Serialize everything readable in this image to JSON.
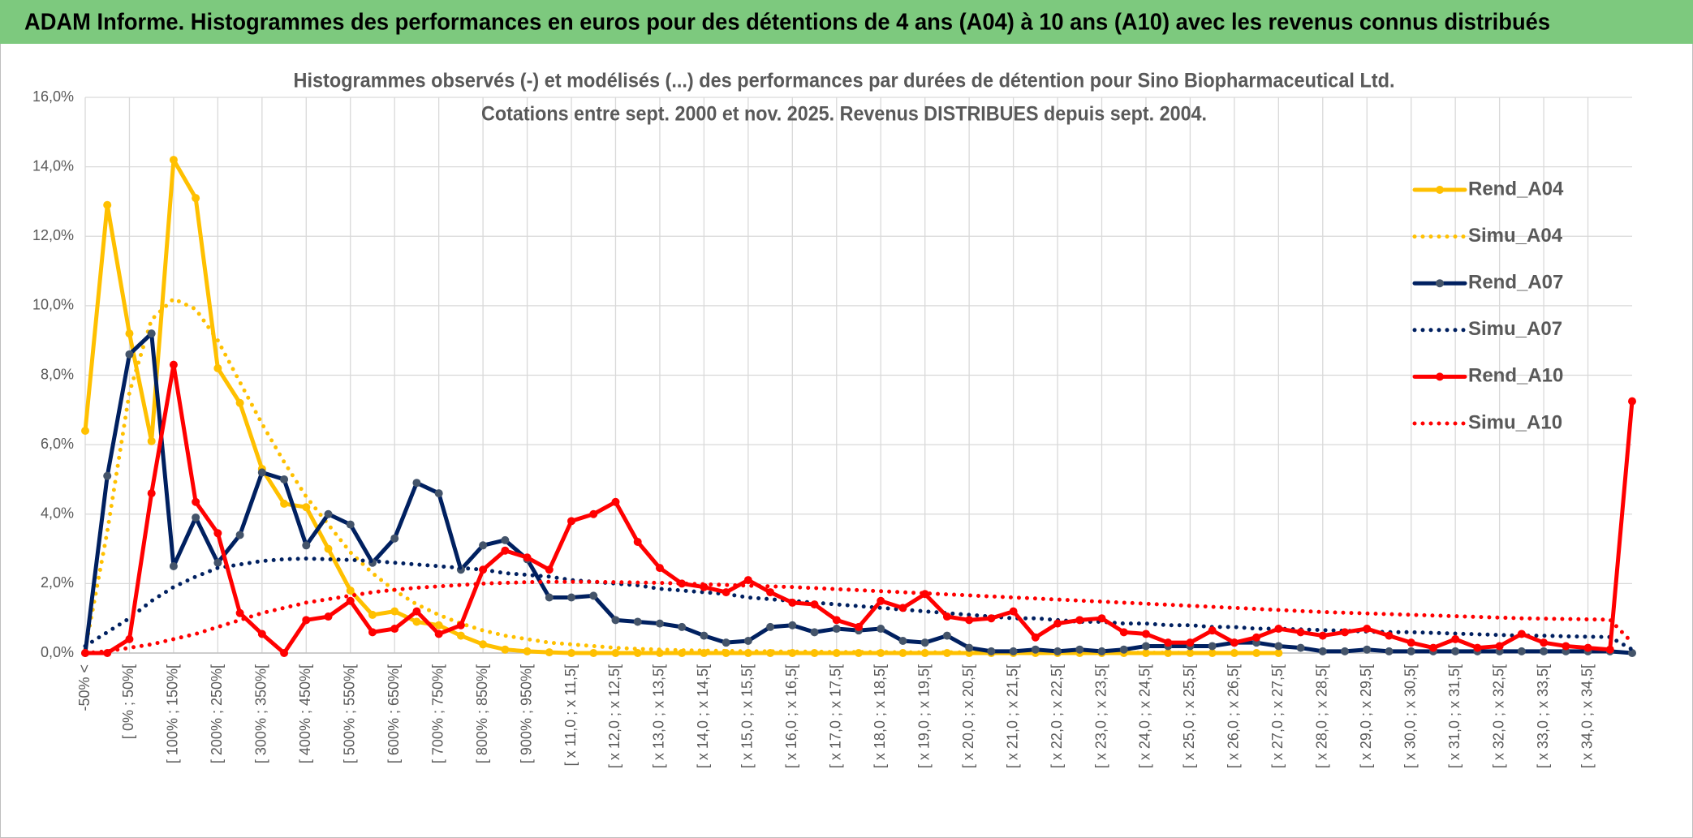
{
  "header": {
    "title": "ADAM Informe. Histogrammes des performances en euros pour des détentions de 4 ans (A04) à 10 ans (A10) avec les revenus connus distribués"
  },
  "chart_data": {
    "type": "line",
    "title": "Histogrammes observés (-) et modélisés (...) des performances par durées de détention pour Sino Biopharmaceutical Ltd.",
    "subtitle": "Cotations entre sept. 2000 et nov. 2025. Revenus DISTRIBUES depuis sept. 2004.",
    "categories": [
      "-50% <",
      null,
      "[ 0% ; 50%[",
      null,
      "[ 100% ; 150%[",
      null,
      "[ 200% ; 250%[",
      null,
      "[ 300% ; 350%[",
      null,
      "[ 400% ; 450%[",
      null,
      "[ 500% ; 550%[",
      null,
      "[ 600% ; 650%[",
      null,
      "[ 700% ; 750%[",
      null,
      "[ 800% ; 850%[",
      null,
      "[ 900% ; 950%[",
      null,
      "[ x 11,0 ; x 11,5[",
      null,
      "[ x 12,0 ; x 12,5[",
      null,
      "[ x 13,0 ; x 13,5[",
      null,
      "[ x 14,0 ; x 14,5[",
      null,
      "[ x 15,0 ; x 15,5[",
      null,
      "[ x 16,0 ; x 16,5[",
      null,
      "[ x 17,0 ; x 17,5[",
      null,
      "[ x 18,0 ; x 18,5[",
      null,
      "[ x 19,0 ; x 19,5[",
      null,
      "[ x 20,0 ; x 20,5[",
      null,
      "[ x 21,0 ; x 21,5[",
      null,
      "[ x 22,0 ; x 22,5[",
      null,
      "[ x 23,0 ; x 23,5[",
      null,
      "[ x 24,0 ; x 24,5[",
      null,
      "[ x 25,0 ; x 25,5[",
      null,
      "[ x 26,0 ; x 26,5[",
      null,
      "[ x 27,0 ; x 27,5[",
      null,
      "[ x 28,0 ; x 28,5[",
      null,
      "[ x 29,0 ; x 29,5[",
      null,
      "[ x 30,0 ; x 30,5[",
      null,
      "[ x 31,0 ; x 31,5[",
      null,
      "[ x 32,0 ; x 32,5[",
      null,
      "[ x 33,0 ; x 33,5[",
      null,
      "[ x 34,0 ; x 34,5[",
      null,
      null
    ],
    "ylim": [
      0,
      16
    ],
    "yticks": [
      {
        "value": 0,
        "label": "0,0%"
      },
      {
        "value": 2,
        "label": "2,0%"
      },
      {
        "value": 4,
        "label": "4,0%"
      },
      {
        "value": 6,
        "label": "6,0%"
      },
      {
        "value": 8,
        "label": "8,0%"
      },
      {
        "value": 10,
        "label": "10,0%"
      },
      {
        "value": 12,
        "label": "12,0%"
      },
      {
        "value": 14,
        "label": "14,0%"
      },
      {
        "value": 16,
        "label": "16,0%"
      }
    ],
    "grid": true,
    "legend": "right",
    "series": [
      {
        "name": "Rend_A04",
        "color": "#FFC000",
        "marker_color": "#FFC000",
        "line_style": "solid",
        "markers": true,
        "values": [
          6.4,
          12.9,
          9.2,
          6.1,
          14.2,
          13.1,
          8.2,
          7.2,
          5.3,
          4.3,
          4.2,
          3.0,
          1.8,
          1.1,
          1.2,
          0.9,
          0.8,
          0.5,
          0.25,
          0.1,
          0.05,
          0.02,
          0,
          0,
          0,
          0,
          0,
          0,
          0,
          0,
          0,
          0,
          0,
          0,
          0,
          0,
          0,
          0,
          0,
          0,
          0,
          0,
          0,
          0,
          0,
          0,
          0,
          0,
          0,
          0,
          0,
          0,
          0,
          0,
          0,
          null,
          null,
          null,
          null,
          null,
          null,
          null,
          null,
          null,
          null,
          null,
          null,
          null,
          null,
          null,
          null
        ]
      },
      {
        "name": "Simu_A04",
        "color": "#FFC000",
        "line_style": "dotted",
        "markers": false,
        "values": [
          0.1,
          3.5,
          7.5,
          9.6,
          10.2,
          9.9,
          9.0,
          7.8,
          6.6,
          5.5,
          4.5,
          3.7,
          2.9,
          2.3,
          1.8,
          1.4,
          1.1,
          0.85,
          0.65,
          0.5,
          0.4,
          0.3,
          0.25,
          0.2,
          0.15,
          0.12,
          0.1,
          0.08,
          0.07,
          0.06,
          0.05,
          0.05,
          0.04,
          0.04,
          0.03,
          0.03,
          0.03,
          0.02,
          0.02,
          0.02,
          0.02,
          0.01,
          0.01,
          0.01,
          0.01,
          0.01,
          0.01,
          0.01,
          0.01,
          0.01,
          0,
          0,
          0,
          0,
          0,
          null,
          null,
          null,
          null,
          null,
          null,
          null,
          null,
          null,
          null,
          null,
          null,
          null,
          null,
          null,
          null
        ]
      },
      {
        "name": "Rend_A07",
        "color": "#002060",
        "marker_color": "#44546A",
        "line_style": "solid",
        "markers": true,
        "values": [
          0,
          5.1,
          8.6,
          9.2,
          2.5,
          3.9,
          2.6,
          3.4,
          5.2,
          5.0,
          3.1,
          4.0,
          3.7,
          2.6,
          3.3,
          4.9,
          4.6,
          2.4,
          3.1,
          3.25,
          2.7,
          1.6,
          1.6,
          1.65,
          0.95,
          0.9,
          0.85,
          0.75,
          0.5,
          0.3,
          0.35,
          0.75,
          0.8,
          0.6,
          0.7,
          0.65,
          0.7,
          0.35,
          0.3,
          0.5,
          0.15,
          0.05,
          0.05,
          0.1,
          0.05,
          0.1,
          0.05,
          0.1,
          0.2,
          0.2,
          0.2,
          0.2,
          0.3,
          0.3,
          0.2,
          0.15,
          0.05,
          0.05,
          0.1,
          0.05,
          0.05,
          0.05,
          0.05,
          0.05,
          0.05,
          0.05,
          0.05,
          0.05,
          0.05,
          0.05,
          0
        ]
      },
      {
        "name": "Simu_A07",
        "color": "#002060",
        "line_style": "dotted",
        "markers": false,
        "values": [
          0.2,
          0.6,
          1.0,
          1.5,
          1.9,
          2.2,
          2.45,
          2.55,
          2.65,
          2.7,
          2.72,
          2.7,
          2.68,
          2.65,
          2.6,
          2.55,
          2.5,
          2.45,
          2.4,
          2.3,
          2.25,
          2.2,
          2.1,
          2.05,
          2.0,
          1.95,
          1.85,
          1.8,
          1.75,
          1.7,
          1.6,
          1.55,
          1.5,
          1.45,
          1.4,
          1.35,
          1.3,
          1.25,
          1.2,
          1.15,
          1.1,
          1.05,
          1.0,
          1.0,
          0.95,
          0.9,
          0.9,
          0.85,
          0.85,
          0.8,
          0.8,
          0.75,
          0.75,
          0.7,
          0.7,
          0.68,
          0.66,
          0.64,
          0.62,
          0.6,
          0.6,
          0.58,
          0.56,
          0.54,
          0.52,
          0.5,
          0.5,
          0.48,
          0.47,
          0.46,
          0.1
        ]
      },
      {
        "name": "Rend_A10",
        "color": "#FF0000",
        "marker_color": "#FF0000",
        "line_style": "solid",
        "markers": true,
        "values": [
          0,
          0,
          0.4,
          4.6,
          8.3,
          4.35,
          3.45,
          1.15,
          0.55,
          0,
          0.95,
          1.05,
          1.5,
          0.6,
          0.7,
          1.2,
          0.55,
          0.8,
          2.4,
          2.95,
          2.75,
          2.4,
          3.8,
          4.0,
          4.35,
          3.2,
          2.45,
          2.0,
          1.9,
          1.75,
          2.1,
          1.75,
          1.45,
          1.4,
          0.95,
          0.75,
          1.5,
          1.3,
          1.7,
          1.05,
          0.95,
          1.0,
          1.2,
          0.45,
          0.85,
          0.95,
          1.0,
          0.6,
          0.55,
          0.3,
          0.3,
          0.65,
          0.3,
          0.45,
          0.7,
          0.6,
          0.5,
          0.6,
          0.7,
          0.5,
          0.3,
          0.15,
          0.4,
          0.15,
          0.2,
          0.55,
          0.3,
          0.2,
          0.15,
          0.1,
          7.25
        ]
      },
      {
        "name": "Simu_A10",
        "color": "#FF0000",
        "line_style": "dotted",
        "markers": false,
        "values": [
          0,
          0.05,
          0.15,
          0.25,
          0.4,
          0.55,
          0.75,
          0.95,
          1.15,
          1.3,
          1.45,
          1.55,
          1.65,
          1.75,
          1.82,
          1.88,
          1.92,
          1.96,
          2.0,
          2.02,
          2.04,
          2.05,
          2.05,
          2.05,
          2.04,
          2.03,
          2.02,
          2.0,
          1.98,
          1.96,
          1.94,
          1.92,
          1.9,
          1.87,
          1.84,
          1.81,
          1.78,
          1.75,
          1.72,
          1.69,
          1.66,
          1.63,
          1.6,
          1.57,
          1.54,
          1.51,
          1.48,
          1.45,
          1.42,
          1.39,
          1.36,
          1.33,
          1.3,
          1.27,
          1.24,
          1.21,
          1.18,
          1.16,
          1.14,
          1.12,
          1.1,
          1.08,
          1.06,
          1.04,
          1.02,
          1.0,
          0.99,
          0.98,
          0.97,
          0.96,
          0.3
        ]
      }
    ]
  }
}
